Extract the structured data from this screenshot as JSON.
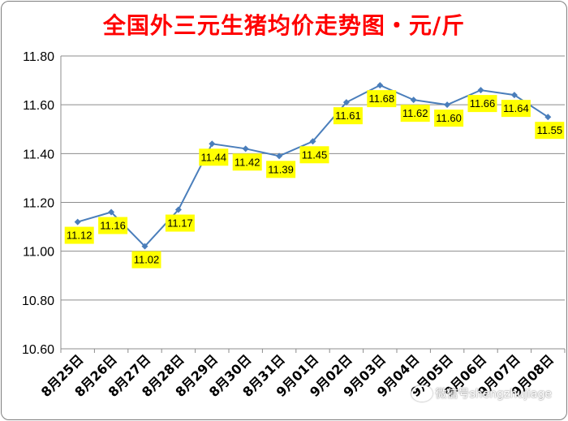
{
  "chart_data": {
    "type": "line",
    "title": "全国外三元生猪均价走势图・元/斤",
    "categories": [
      "8月25日",
      "8月26日",
      "8月27日",
      "8月28日",
      "8月29日",
      "8月30日",
      "8月31日",
      "9月01日",
      "9月02日",
      "9月03日",
      "9月04日",
      "9月05日",
      "9月06日",
      "9月07日",
      "9月08日"
    ],
    "series": [
      {
        "values": [
          11.12,
          11.16,
          11.02,
          11.17,
          11.44,
          11.42,
          11.39,
          11.45,
          11.61,
          11.68,
          11.62,
          11.6,
          11.66,
          11.64,
          11.55
        ]
      }
    ],
    "data_labels": [
      "11.12",
      "11.16",
      "11.02",
      "11.17",
      "11.44",
      "11.42",
      "11.39",
      "11.45",
      "11.61",
      "11.68",
      "11.62",
      "11.60",
      "11.66",
      "11.64",
      "11.55"
    ],
    "y_ticks": [
      "10.60",
      "10.80",
      "11.00",
      "11.20",
      "11.40",
      "11.60",
      "11.80"
    ],
    "ylim": [
      10.6,
      11.8
    ],
    "grid": true,
    "legend": "none",
    "colors": {
      "line": "#4a7ebb",
      "label_bg": "#ffff00",
      "title": "#ff0000",
      "grid": "#8c8c8c"
    }
  },
  "watermark": "微信号shengzhujiage"
}
